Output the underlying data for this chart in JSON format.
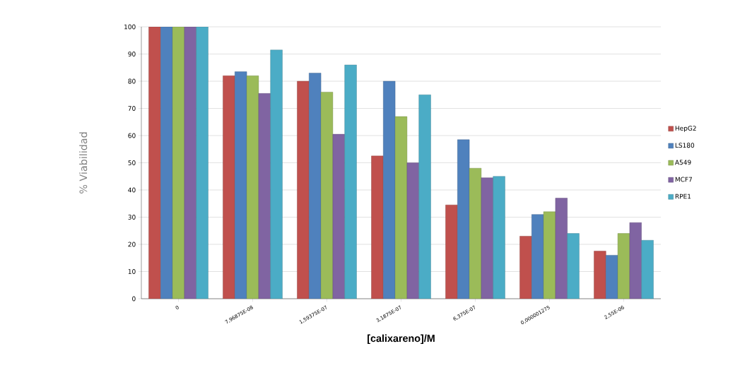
{
  "chart_data": {
    "type": "bar",
    "xlabel": "[calixareno]/M",
    "ylabel": "% Viabilidad",
    "categories": [
      "0",
      "7,96875E-08",
      "1,59375E-07",
      "3,1875E-07",
      "6,375E-07",
      "0,000001275",
      "2,55E-06"
    ],
    "series": [
      {
        "name": "HepG2",
        "color": "#c0504d",
        "values": [
          100,
          82,
          80,
          52.5,
          34.5,
          23,
          17.5
        ]
      },
      {
        "name": "LS180",
        "color": "#4f81bd",
        "values": [
          100,
          83.5,
          83,
          80,
          58.5,
          31,
          16
        ]
      },
      {
        "name": "A549",
        "color": "#9bbb59",
        "values": [
          100,
          82,
          76,
          67,
          48,
          32,
          24
        ]
      },
      {
        "name": "MCF7",
        "color": "#8064a2",
        "values": [
          100,
          75.5,
          60.5,
          50,
          44.5,
          37,
          28
        ]
      },
      {
        "name": "RPE1",
        "color": "#4bacc6",
        "values": [
          100,
          91.5,
          86,
          75,
          45,
          24,
          21.5
        ]
      }
    ],
    "ylim": [
      0,
      100
    ],
    "yticks": [
      0,
      10,
      20,
      30,
      40,
      50,
      60,
      70,
      80,
      90,
      100
    ],
    "grid": "y",
    "legend": "right"
  }
}
